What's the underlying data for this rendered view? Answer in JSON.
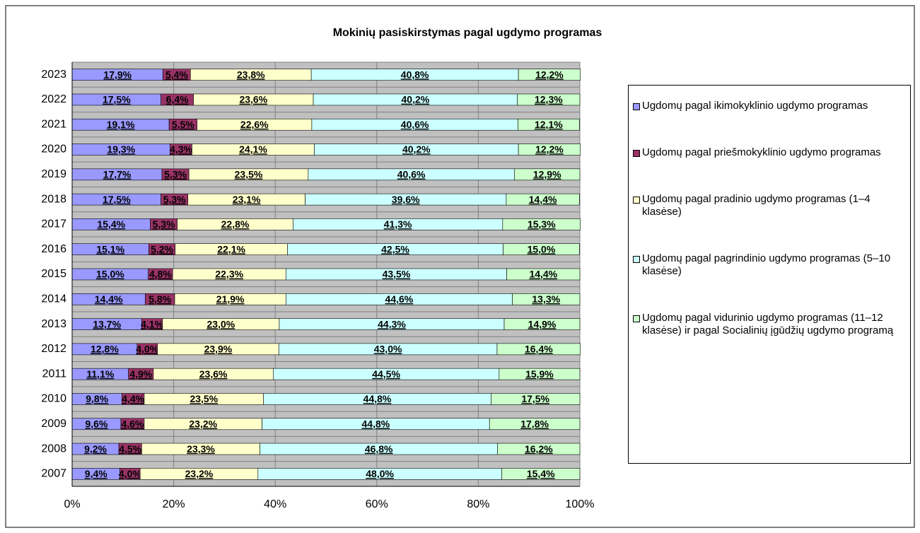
{
  "chart_data": {
    "type": "bar",
    "orientation": "horizontal",
    "stacked": true,
    "title": "Mokinių pasiskirstymas pagal ugdymo programas",
    "categories": [
      "2023",
      "2022",
      "2021",
      "2020",
      "2019",
      "2018",
      "2017",
      "2016",
      "2015",
      "2014",
      "2013",
      "2012",
      "2011",
      "2010",
      "2009",
      "2008",
      "2007"
    ],
    "series": [
      {
        "name": "Ugdomų pagal ikimokyklinio ugdymo programas",
        "color": "#9999ff",
        "values": [
          17.9,
          17.5,
          19.1,
          19.3,
          17.7,
          17.5,
          15.4,
          15.1,
          15.0,
          14.4,
          13.7,
          12.8,
          11.1,
          9.8,
          9.6,
          9.2,
          9.4
        ],
        "value_labels": [
          "17,9%",
          "17,5%",
          "19,1%",
          "19,3%",
          "17,7%",
          "17,5%",
          "15,4%",
          "15,1%",
          "15,0%",
          "14,4%",
          "13,7%",
          "12,8%",
          "11,1%",
          "9,8%",
          "9,6%",
          "9,2%",
          "9,4%"
        ]
      },
      {
        "name": "Ugdomų pagal priešmokyklinio ugdymo programas",
        "color": "#993366",
        "values": [
          5.4,
          6.4,
          5.5,
          4.3,
          5.3,
          5.3,
          5.3,
          5.2,
          4.8,
          5.8,
          4.1,
          4.0,
          4.9,
          4.4,
          4.6,
          4.5,
          4.0
        ],
        "value_labels": [
          "5,4%",
          "6,4%",
          "5,5%",
          "4,3%",
          "5,3%",
          "5,3%",
          "5,3%",
          "5,2%",
          "4,8%",
          "5,8%",
          "4,1%",
          "4,0%",
          "4,9%",
          "4,4%",
          "4,6%",
          "4,5%",
          "4,0%"
        ]
      },
      {
        "name": "Ugdomų pagal pradinio ugdymo programas (1–4 klasėse)",
        "color": "#ffffcc",
        "values": [
          23.8,
          23.6,
          22.6,
          24.1,
          23.5,
          23.1,
          22.8,
          22.1,
          22.3,
          21.9,
          23.0,
          23.9,
          23.6,
          23.5,
          23.2,
          23.3,
          23.2
        ],
        "value_labels": [
          "23,8%",
          "23,6%",
          "22,6%",
          "24,1%",
          "23,5%",
          "23,1%",
          "22,8%",
          "22,1%",
          "22,3%",
          "21,9%",
          "23,0%",
          "23,9%",
          "23,6%",
          "23,5%",
          "23,2%",
          "23,3%",
          "23,2%"
        ]
      },
      {
        "name": "Ugdomų pagal pagrindinio ugdymo programas (5–10 klasėse)",
        "color": "#ccffff",
        "values": [
          40.8,
          40.2,
          40.6,
          40.2,
          40.6,
          39.6,
          41.3,
          42.5,
          43.5,
          44.6,
          44.3,
          43.0,
          44.5,
          44.8,
          44.8,
          46.8,
          48.0
        ],
        "value_labels": [
          "40,8%",
          "40,2%",
          "40,6%",
          "40,2%",
          "40,6%",
          "39,6%",
          "41,3%",
          "42,5%",
          "43,5%",
          "44,6%",
          "44,3%",
          "43,0%",
          "44,5%",
          "44,8%",
          "44,8%",
          "46,8%",
          "48,0%"
        ]
      },
      {
        "name": "Ugdomų pagal vidurinio ugdymo programas (11–12 klasėse) ir pagal Socialinių įgūdžių ugdymo programą",
        "color": "#ccffcc",
        "values": [
          12.2,
          12.3,
          12.1,
          12.2,
          12.9,
          14.4,
          15.3,
          15.0,
          14.4,
          13.3,
          14.9,
          16.4,
          15.9,
          17.5,
          17.8,
          16.2,
          15.4
        ],
        "value_labels": [
          "12,2%",
          "12,3%",
          "12,1%",
          "12,2%",
          "12,9%",
          "14,4%",
          "15,3%",
          "15,0%",
          "14,4%",
          "13,3%",
          "14,9%",
          "16,4%",
          "15,9%",
          "17,5%",
          "17,8%",
          "16,2%",
          "15,4%"
        ]
      }
    ],
    "xlim": [
      0,
      100
    ],
    "xticks": [
      {
        "value": 0,
        "label": "0%"
      },
      {
        "value": 20,
        "label": "20%"
      },
      {
        "value": 40,
        "label": "40%"
      },
      {
        "value": 60,
        "label": "60%"
      },
      {
        "value": 80,
        "label": "80%"
      },
      {
        "value": 100,
        "label": "100%"
      }
    ],
    "grid": true
  }
}
